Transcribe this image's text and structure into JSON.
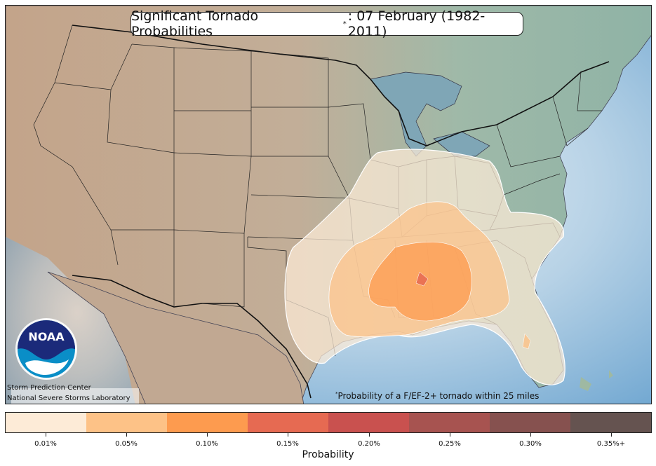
{
  "title": {
    "main": "Significant Tornado Probabilities",
    "marker": "*",
    "suffix": ": 07 February (1982-2011)"
  },
  "logo_text": "NOAA",
  "credits": {
    "line1": "Storm Prediction Center",
    "line2": "National Severe Storms Laboratory"
  },
  "footnote": {
    "marker": "*",
    "text": "Probability of a F/EF-2+ tornado within 25 miles"
  },
  "colorbar": {
    "label": "Probability",
    "bins": [
      {
        "label": "0.01%",
        "color": "#fdebd7"
      },
      {
        "label": "0.05%",
        "color": "#fdc287"
      },
      {
        "label": "0.10%",
        "color": "#fd9b4f"
      },
      {
        "label": "0.15%",
        "color": "#e66a52"
      },
      {
        "label": "0.20%",
        "color": "#c9514f"
      },
      {
        "label": "0.25%",
        "color": "#a75350"
      },
      {
        "label": "0.30%",
        "color": "#86514f"
      },
      {
        "label": "0.35%+",
        "color": "#655350"
      }
    ]
  },
  "colors": {
    "ocean": "#7fb2d8",
    "land": "#b5b5a2",
    "contour_edge": "#ffffff"
  }
}
